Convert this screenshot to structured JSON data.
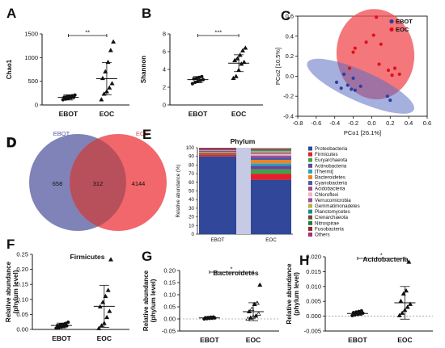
{
  "chart_data": [
    {
      "panel": "A",
      "type": "scatter",
      "ylabel": "Chao1",
      "title": "",
      "categories": [
        "EBOT",
        "EOC"
      ],
      "ylim": [
        0,
        1500
      ],
      "yticks": [
        0,
        500,
        1000,
        1500
      ],
      "significance": "**",
      "series": [
        {
          "name": "EBOT",
          "values": [
            110,
            125,
            140,
            150,
            160,
            165,
            175,
            185,
            195,
            210
          ],
          "mean": 160,
          "sd": 55
        },
        {
          "name": "EOC",
          "values": [
            110,
            230,
            280,
            360,
            450,
            560,
            700,
            900,
            1150,
            1330
          ],
          "mean": 555,
          "sd": 340
        }
      ]
    },
    {
      "panel": "B",
      "type": "scatter",
      "ylabel": "Shannon",
      "title": "",
      "categories": [
        "EBOT",
        "EOC"
      ],
      "ylim": [
        0,
        8
      ],
      "yticks": [
        0,
        2,
        4,
        6,
        8
      ],
      "significance": "***",
      "series": [
        {
          "name": "EBOT",
          "values": [
            2.4,
            2.55,
            2.65,
            2.75,
            2.85,
            2.95,
            3.0,
            3.1,
            3.2
          ],
          "mean": 2.85,
          "sd": 0.35
        },
        {
          "name": "EOC",
          "values": [
            3.0,
            3.2,
            3.9,
            4.6,
            4.8,
            5.0,
            5.2,
            5.6,
            6.1,
            6.4
          ],
          "mean": 4.7,
          "sd": 0.95
        }
      ]
    },
    {
      "panel": "C",
      "type": "scatter",
      "title": "",
      "xlabel": "PCo1 [26.1%]",
      "ylabel": "PCo2 [10.5%]",
      "xlim": [
        -0.8,
        0.6
      ],
      "ylim": [
        -0.4,
        0.6
      ],
      "xticks": [
        "-0.8",
        "-0.6",
        "-0.4",
        "-0.2",
        "0.0",
        "0.2",
        "0.4",
        "0.6"
      ],
      "yticks": [
        "-0.4",
        "-0.2",
        "0.0",
        "0.2",
        "0.4",
        "0.6"
      ],
      "legend": "top-right",
      "series": [
        {
          "name": "EBOT",
          "color": "#2f3e9e",
          "x": [
            -0.38,
            -0.3,
            -0.33,
            -0.26,
            -0.22,
            -0.18,
            -0.12,
            -0.2,
            0.17,
            0.2
          ],
          "y": [
            -0.06,
            0.02,
            -0.12,
            -0.09,
            -0.13,
            -0.14,
            -0.1,
            -0.02,
            -0.2,
            -0.24
          ]
        },
        {
          "name": "EOC",
          "color": "#e0101c",
          "x": [
            -0.24,
            -0.2,
            -0.18,
            -0.06,
            0.02,
            0.05,
            0.1,
            0.18,
            0.22,
            0.25,
            0.3,
            0.08
          ],
          "y": [
            0.08,
            0.24,
            0.28,
            0.34,
            0.41,
            0.59,
            0.32,
            0.06,
            0.01,
            0.08,
            0.02,
            0.12
          ]
        }
      ]
    },
    {
      "panel": "D",
      "type": "venn",
      "sets": [
        {
          "name": "EBOT",
          "only": 658,
          "color": "#7f83b8"
        },
        {
          "name": "EOC",
          "only": 4144,
          "color": "#f05a5e"
        }
      ],
      "shared": 312
    },
    {
      "panel": "E",
      "type": "bar",
      "stacked": true,
      "title": "Phylum",
      "ylabel": "Relative abundance (%)",
      "categories": [
        "EBOT",
        "EOC"
      ],
      "ylim": [
        0,
        100
      ],
      "yticks": [
        0,
        10,
        20,
        30,
        40,
        50,
        60,
        70,
        80,
        90,
        100
      ],
      "legend": "right",
      "series": [
        {
          "name": "Proteobacteria",
          "color": "#30479a",
          "values": [
            90,
            63
          ]
        },
        {
          "name": "Firmicutes",
          "color": "#e51f2c",
          "values": [
            2,
            7
          ]
        },
        {
          "name": "Euryarchaeota",
          "color": "#3da348",
          "values": [
            0.5,
            5
          ]
        },
        {
          "name": "Actinobacteria",
          "color": "#6b4197",
          "values": [
            1,
            4
          ]
        },
        {
          "name": "[Thermi]",
          "color": "#22a7c1",
          "values": [
            0.3,
            3
          ]
        },
        {
          "name": "Bacteroidetes",
          "color": "#f4821f",
          "values": [
            1.5,
            4
          ]
        },
        {
          "name": "Cyanobacteria",
          "color": "#4b5aa6",
          "values": [
            0.5,
            3
          ]
        },
        {
          "name": "Acidobacteria",
          "color": "#a5478d",
          "values": [
            0.5,
            2
          ]
        },
        {
          "name": "Chloroflexi",
          "color": "#f0b6c4",
          "values": [
            0.3,
            2
          ]
        },
        {
          "name": "Verrucomicrobia",
          "color": "#9a4b9c",
          "values": [
            0.3,
            1.5
          ]
        },
        {
          "name": "Gemmatimonadetes",
          "color": "#b3b43e",
          "values": [
            0.2,
            1.5
          ]
        },
        {
          "name": "Planctomycetes",
          "color": "#1b8a8c",
          "values": [
            0.2,
            1
          ]
        },
        {
          "name": "Crenarchaeota",
          "color": "#6f4a2a",
          "values": [
            0.2,
            1
          ]
        },
        {
          "name": "Nitrospirae",
          "color": "#1f7a3d",
          "values": [
            0.2,
            0.5
          ]
        },
        {
          "name": "Fusobacteria",
          "color": "#8e2a2a",
          "values": [
            0.8,
            0.5
          ]
        },
        {
          "name": "Others",
          "color": "#a3326f",
          "values": [
            1.5,
            0.5
          ]
        }
      ]
    },
    {
      "panel": "F",
      "type": "scatter",
      "title": "Firmicutes",
      "ylabel": "Relative abundance\n(phylum level)",
      "categories": [
        "EBOT",
        "EOC"
      ],
      "ylim": [
        0,
        0.25
      ],
      "yticks": [
        "0.00",
        "0.05",
        "0.10",
        "0.15",
        "0.20",
        "0.25"
      ],
      "significance": "",
      "series": [
        {
          "name": "EBOT",
          "values": [
            0.004,
            0.006,
            0.008,
            0.01,
            0.012,
            0.013,
            0.015,
            0.017,
            0.02,
            0.024
          ],
          "mean": 0.013,
          "sd": 0.008
        },
        {
          "name": "EOC",
          "values": [
            0.003,
            0.012,
            0.02,
            0.04,
            0.06,
            0.075,
            0.09,
            0.11,
            0.13,
            0.232
          ],
          "mean": 0.077,
          "sd": 0.07
        }
      ]
    },
    {
      "panel": "G",
      "type": "scatter",
      "title": "Bacteroidetes",
      "ylabel": "Relative abundance\n(phylum level)",
      "categories": [
        "EBOT",
        "EOC"
      ],
      "ylim": [
        -0.05,
        0.2
      ],
      "yticks": [
        "-0.05",
        "0.00",
        "0.05",
        "0.10",
        "0.15",
        "0.20"
      ],
      "significance": "*",
      "series": [
        {
          "name": "EBOT",
          "values": [
            0.0,
            0.001,
            0.002,
            0.003,
            0.004,
            0.005,
            0.006,
            0.007,
            0.008
          ],
          "mean": 0.004,
          "sd": 0.003
        },
        {
          "name": "EOC",
          "values": [
            0.0,
            0.004,
            0.008,
            0.012,
            0.02,
            0.03,
            0.04,
            0.06,
            0.065,
            0.14
          ],
          "mean": 0.03,
          "sd": 0.037
        }
      ]
    },
    {
      "panel": "H",
      "type": "scatter",
      "title": "Acidobacteria",
      "ylabel": "Relative abundance\n(phylum level)",
      "categories": [
        "EBOT",
        "EOC"
      ],
      "ylim": [
        -0.005,
        0.02
      ],
      "yticks": [
        "-0.005",
        "0.000",
        "0.005",
        "0.010",
        "0.015",
        "0.020"
      ],
      "significance": "*",
      "series": [
        {
          "name": "EBOT",
          "values": [
            0.0002,
            0.0004,
            0.0006,
            0.0008,
            0.001,
            0.0012,
            0.0014,
            0.0016,
            0.0018
          ],
          "mean": 0.0009,
          "sd": 0.0006
        },
        {
          "name": "EOC",
          "values": [
            0.0002,
            0.001,
            0.002,
            0.003,
            0.004,
            0.005,
            0.0075,
            0.0085,
            0.0182
          ],
          "mean": 0.0045,
          "sd": 0.0055
        }
      ]
    }
  ]
}
